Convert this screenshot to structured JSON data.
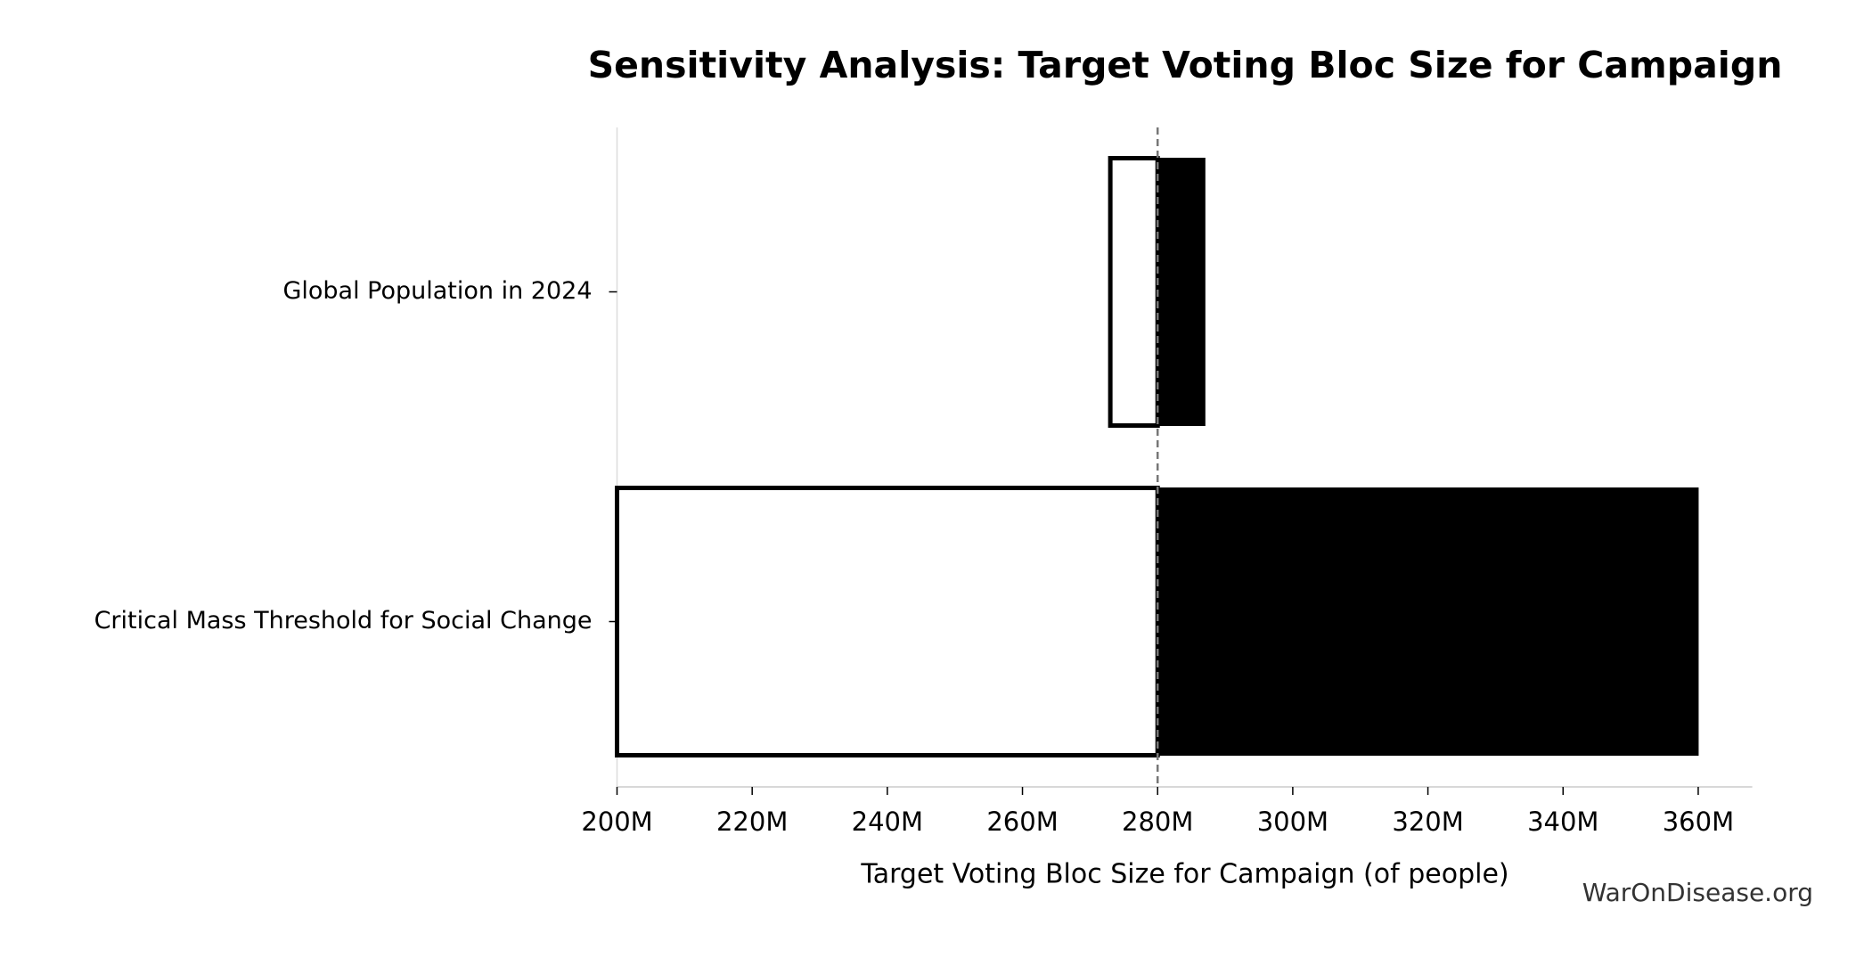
{
  "chart_data": {
    "type": "tornado",
    "title": "Sensitivity Analysis: Target Voting Bloc Size for Campaign",
    "xlabel": "Target Voting Bloc Size for Campaign (of people)",
    "annotation": "WarOnDisease.org",
    "categories": [
      "Global Population in 2024",
      "Critical Mass Threshold for Social Change"
    ],
    "baseline": 280000000,
    "low_values": [
      273000000,
      200000000
    ],
    "high_values": [
      287000000,
      360000000
    ],
    "low_color": "#ffffff",
    "high_color": "#000000",
    "xlim": [
      200000000,
      368000000
    ],
    "xticks": [
      {
        "value": 200000000,
        "label": "200M"
      },
      {
        "value": 220000000,
        "label": "220M"
      },
      {
        "value": 240000000,
        "label": "240M"
      },
      {
        "value": 260000000,
        "label": "260M"
      },
      {
        "value": 280000000,
        "label": "280M"
      },
      {
        "value": 300000000,
        "label": "300M"
      },
      {
        "value": 320000000,
        "label": "320M"
      },
      {
        "value": 340000000,
        "label": "340M"
      },
      {
        "value": 360000000,
        "label": "360M"
      }
    ]
  }
}
